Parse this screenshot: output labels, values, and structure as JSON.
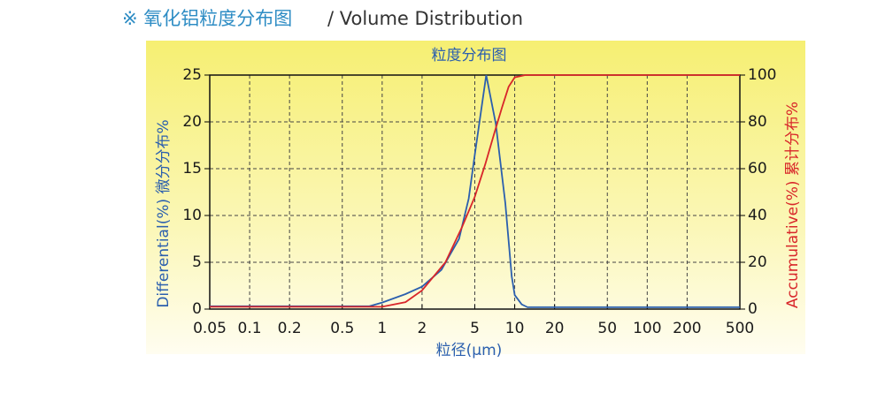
{
  "header": {
    "title": "※ 氧化铝粒度分布图",
    "subtitle": "/ Volume Distribution"
  },
  "chart_data": {
    "type": "line",
    "title": "粒度分布图",
    "xlabel": "粒径(μm)",
    "ylabel": "Differential(%)  微分分布%",
    "y2label": "Accumulative(%)  累计分布%",
    "xscale": "log",
    "xlim": [
      0.05,
      500
    ],
    "xticks": [
      0.05,
      0.1,
      0.2,
      0.5,
      1,
      2,
      5,
      10,
      20,
      50,
      100,
      200,
      500
    ],
    "ylim": [
      0,
      25
    ],
    "yticks": [
      0,
      5,
      10,
      15,
      20,
      25
    ],
    "y2lim": [
      0,
      100
    ],
    "y2ticks": [
      0,
      20,
      40,
      60,
      80,
      100
    ],
    "grid": true,
    "series": [
      {
        "name": "Differential",
        "color": "#2b5fae",
        "x": [
          0.05,
          0.8,
          1,
          1.5,
          2,
          2.8,
          3.8,
          4.5,
          5,
          6.1,
          7.2,
          8.5,
          9.5,
          10,
          11.3,
          12.5,
          500
        ],
        "values": [
          0.3,
          0.3,
          0.7,
          1.6,
          2.4,
          4.2,
          7.5,
          11.8,
          16.5,
          25,
          19.8,
          11.3,
          3.5,
          1.5,
          0.5,
          0.2,
          0.2
        ]
      },
      {
        "name": "Accumulative",
        "color": "#d8262a",
        "axis": "y2",
        "x": [
          0.05,
          1,
          1.5,
          2,
          3,
          4,
          5,
          6,
          7,
          8,
          9,
          10,
          12,
          500
        ],
        "values": [
          1,
          1,
          3,
          8,
          20,
          35,
          48,
          62,
          75,
          86,
          95,
          99,
          100,
          100
        ]
      }
    ]
  }
}
